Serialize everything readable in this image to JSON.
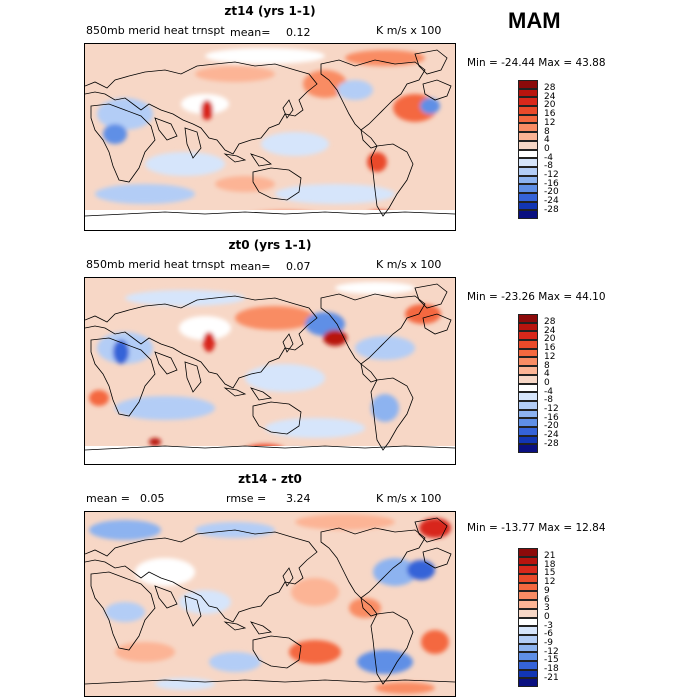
{
  "season": "MAM",
  "panels": [
    {
      "title": "zt14 (yrs 1-1)",
      "subtitle": "850mb merid heat trnspt",
      "stat_label": "mean=",
      "stat_value": "0.12",
      "units": "K m/s x 100",
      "minmax": "Min = -24.44 Max =  43.88",
      "colorbar_labels": [
        "28",
        "24",
        "20",
        "16",
        "12",
        "8",
        "4",
        "0",
        "-4",
        "-8",
        "-12",
        "-16",
        "-20",
        "-24",
        "-28"
      ],
      "colorbar_colors": [
        "#8c0a0a",
        "#b8140e",
        "#d8281b",
        "#ea4a2a",
        "#f4683f",
        "#f98c64",
        "#fcb495",
        "#f7d7c6",
        "#ffffff",
        "#d6e5fb",
        "#b3cdf6",
        "#8db3f0",
        "#5f8fe6",
        "#3563d8",
        "#1236b4",
        "#0a1080"
      ]
    },
    {
      "title": "zt0 (yrs 1-1)",
      "subtitle": "850mb merid heat trnspt",
      "stat_label": "mean=",
      "stat_value": "0.07",
      "units": "K m/s x 100",
      "minmax": "Min = -23.26 Max =  44.10",
      "colorbar_labels": [
        "28",
        "24",
        "20",
        "16",
        "12",
        "8",
        "4",
        "0",
        "-4",
        "-8",
        "-12",
        "-16",
        "-20",
        "-24",
        "-28"
      ],
      "colorbar_colors": [
        "#8c0a0a",
        "#b8140e",
        "#d8281b",
        "#ea4a2a",
        "#f4683f",
        "#f98c64",
        "#fcb495",
        "#f7d7c6",
        "#ffffff",
        "#d6e5fb",
        "#b3cdf6",
        "#8db3f0",
        "#5f8fe6",
        "#3563d8",
        "#1236b4",
        "#0a1080"
      ]
    },
    {
      "title": "zt14 - zt0",
      "mean_label": "mean =",
      "mean_value": "0.05",
      "rmse_label": "rmse =",
      "rmse_value": "3.24",
      "units": "K m/s x 100",
      "minmax": "Min = -13.77 Max =  12.84",
      "colorbar_labels": [
        "21",
        "18",
        "15",
        "12",
        "9",
        "6",
        "3",
        "0",
        "-3",
        "-6",
        "-9",
        "-12",
        "-15",
        "-18",
        "-21"
      ],
      "colorbar_colors": [
        "#8c0a0a",
        "#b8140e",
        "#d8281b",
        "#ea4a2a",
        "#f4683f",
        "#f98c64",
        "#fcb495",
        "#f7d7c6",
        "#ffffff",
        "#d6e5fb",
        "#b3cdf6",
        "#8db3f0",
        "#5f8fe6",
        "#3563d8",
        "#1236b4",
        "#0a1080"
      ]
    }
  ]
}
